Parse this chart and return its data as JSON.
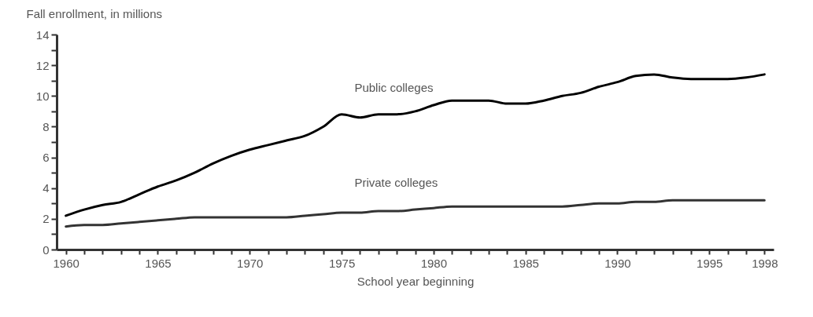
{
  "chart_data": {
    "type": "line",
    "xlabel": "School year beginning",
    "ylabel": "Fall enrollment, in millions",
    "x": [
      1960,
      1961,
      1962,
      1963,
      1964,
      1965,
      1966,
      1967,
      1968,
      1969,
      1970,
      1971,
      1972,
      1973,
      1974,
      1975,
      1976,
      1977,
      1978,
      1979,
      1980,
      1981,
      1982,
      1983,
      1984,
      1985,
      1986,
      1987,
      1988,
      1989,
      1990,
      1991,
      1992,
      1993,
      1994,
      1995,
      1996,
      1997,
      1998
    ],
    "series": [
      {
        "name": "Public colleges",
        "color": "#000000",
        "values": [
          2.2,
          2.6,
          2.9,
          3.1,
          3.6,
          4.1,
          4.5,
          5.0,
          5.6,
          6.1,
          6.5,
          6.8,
          7.1,
          7.4,
          8.0,
          8.8,
          8.6,
          8.8,
          8.8,
          9.0,
          9.4,
          9.7,
          9.7,
          9.7,
          9.5,
          9.5,
          9.7,
          10.0,
          10.2,
          10.6,
          10.9,
          11.3,
          11.4,
          11.2,
          11.1,
          11.1,
          11.1,
          11.2,
          11.4
        ]
      },
      {
        "name": "Private colleges",
        "color": "#333333",
        "values": [
          1.5,
          1.6,
          1.6,
          1.7,
          1.8,
          1.9,
          2.0,
          2.1,
          2.1,
          2.1,
          2.1,
          2.1,
          2.1,
          2.2,
          2.3,
          2.4,
          2.4,
          2.5,
          2.5,
          2.6,
          2.7,
          2.8,
          2.8,
          2.8,
          2.8,
          2.8,
          2.8,
          2.8,
          2.9,
          3.0,
          3.0,
          3.1,
          3.1,
          3.2,
          3.2,
          3.2,
          3.2,
          3.2,
          3.2
        ]
      }
    ],
    "xlim": [
      1959.5,
      1998.5
    ],
    "xticks": [
      1960,
      {
        "value": 1961,
        "label": null
      },
      {
        "value": 1962,
        "label": null
      },
      {
        "value": 1963,
        "label": null
      },
      {
        "value": 1964,
        "label": null
      },
      1965,
      {
        "value": 1966,
        "label": null
      },
      {
        "value": 1967,
        "label": null
      },
      {
        "value": 1968,
        "label": null
      },
      {
        "value": 1969,
        "label": null
      },
      1970,
      {
        "value": 1971,
        "label": null
      },
      {
        "value": 1972,
        "label": null
      },
      {
        "value": 1973,
        "label": null
      },
      {
        "value": 1974,
        "label": null
      },
      1975,
      {
        "value": 1976,
        "label": null
      },
      {
        "value": 1977,
        "label": null
      },
      {
        "value": 1978,
        "label": null
      },
      {
        "value": 1979,
        "label": null
      },
      1980,
      {
        "value": 1981,
        "label": null
      },
      {
        "value": 1982,
        "label": null
      },
      {
        "value": 1983,
        "label": null
      },
      {
        "value": 1984,
        "label": null
      },
      1985,
      {
        "value": 1986,
        "label": null
      },
      {
        "value": 1987,
        "label": null
      },
      {
        "value": 1988,
        "label": null
      },
      {
        "value": 1989,
        "label": null
      },
      1990,
      {
        "value": 1991,
        "label": null
      },
      {
        "value": 1992,
        "label": null
      },
      {
        "value": 1993,
        "label": null
      },
      {
        "value": 1994,
        "label": null
      },
      1995,
      {
        "value": 1996,
        "label": null
      },
      {
        "value": 1997,
        "label": null
      },
      1998
    ],
    "ylim": [
      0,
      14
    ],
    "yticks": [
      0,
      {
        "value": 1,
        "label": null
      },
      2,
      {
        "value": 3,
        "label": null
      },
      4,
      {
        "value": 5,
        "label": null
      },
      6,
      {
        "value": 7,
        "label": null
      },
      8,
      {
        "value": 9,
        "label": null
      },
      10,
      {
        "value": 11,
        "label": null
      },
      12,
      {
        "value": 13,
        "label": null
      },
      14
    ],
    "line_style": "solid"
  }
}
